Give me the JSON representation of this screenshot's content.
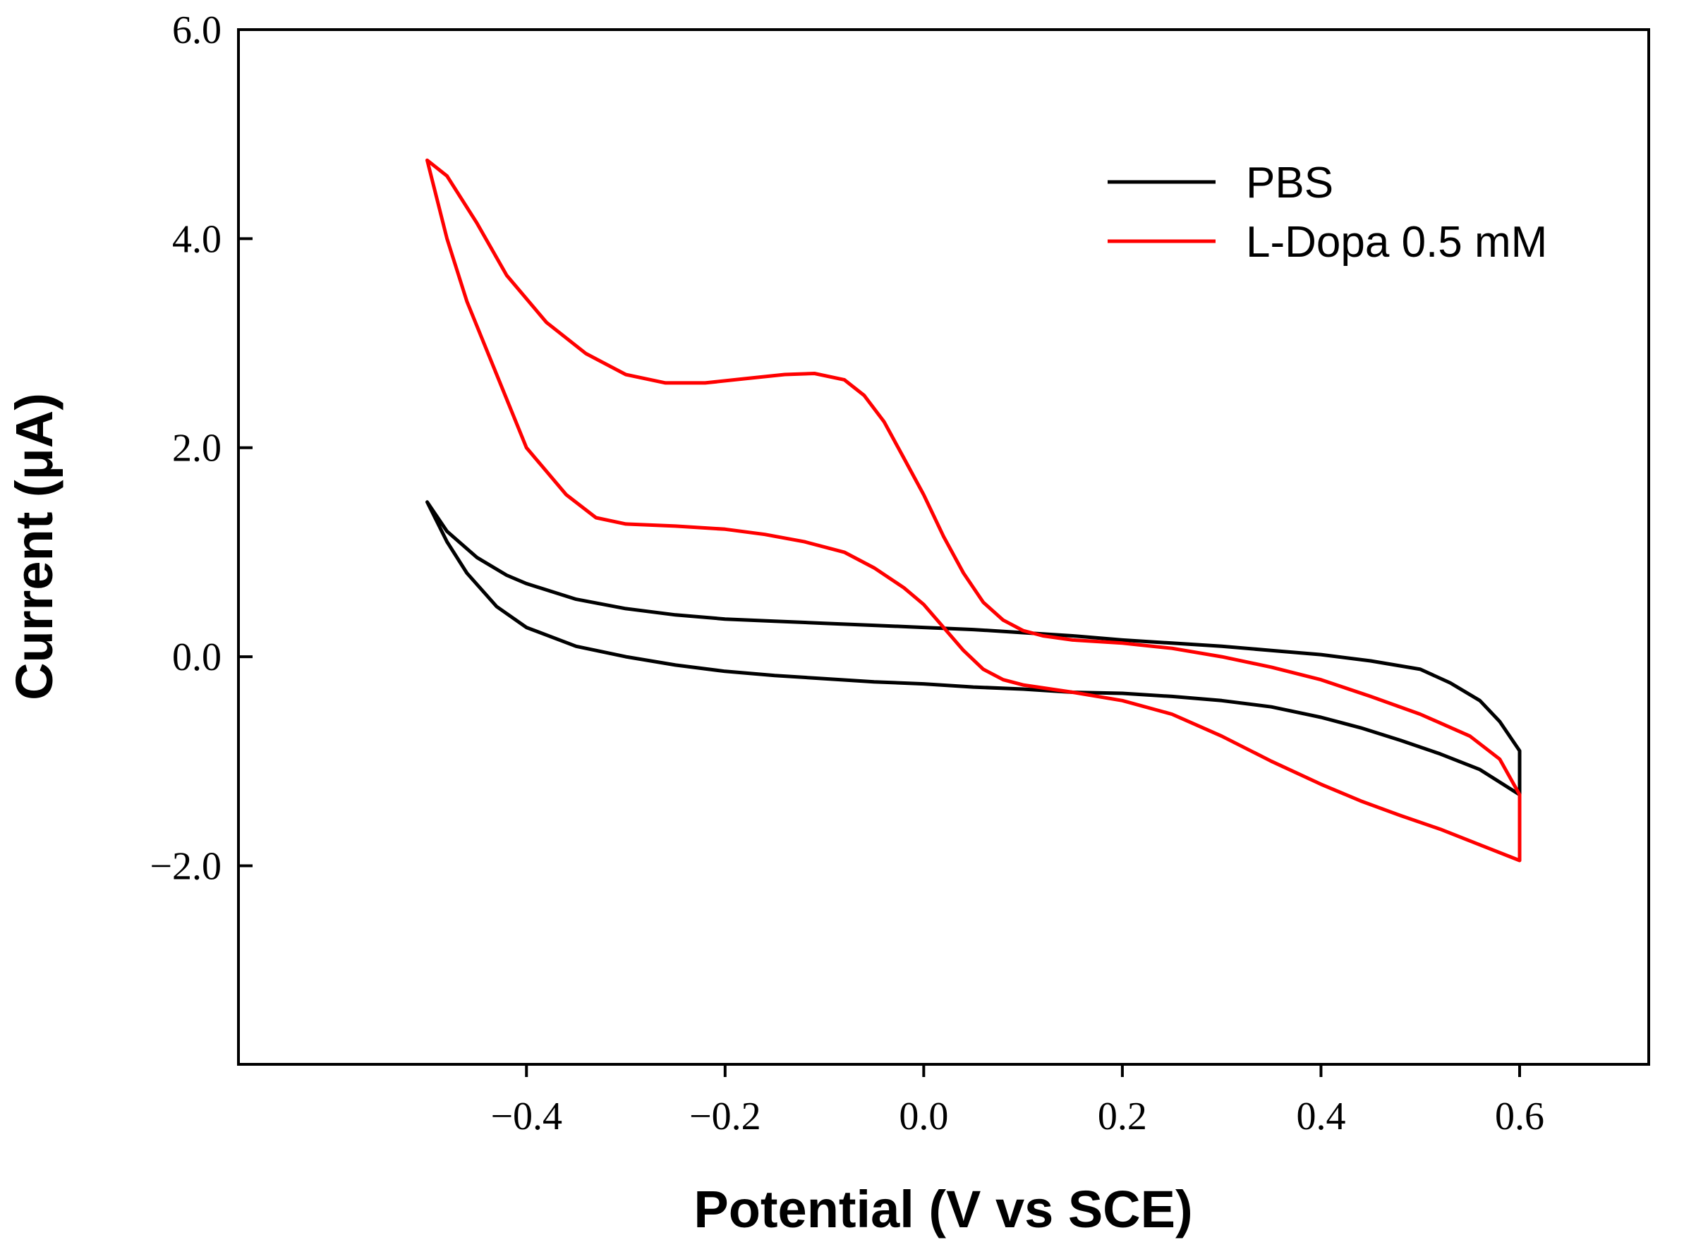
{
  "chart_data": {
    "type": "line",
    "title": "",
    "xlabel": "Potential (V vs SCE)",
    "ylabel": "Current (μA)",
    "xlim": [
      -0.69,
      0.73
    ],
    "ylim": [
      -3.9,
      6.0
    ],
    "xticks": [
      -0.4,
      -0.2,
      0.0,
      0.2,
      0.4,
      0.6
    ],
    "xtick_labels": [
      "−0.4",
      "−0.2",
      "0.0",
      "0.2",
      "0.4",
      "0.6"
    ],
    "yticks": [
      -2.0,
      0.0,
      2.0,
      4.0,
      6.0
    ],
    "ytick_labels": [
      "−2.0",
      "0.0",
      "2.0",
      "4.0",
      "6.0"
    ],
    "grid": false,
    "legend_position": "top-right",
    "series": [
      {
        "name": "PBS",
        "color": "#000000",
        "x": [
          -0.5,
          -0.48,
          -0.45,
          -0.42,
          -0.4,
          -0.35,
          -0.3,
          -0.25,
          -0.2,
          -0.15,
          -0.1,
          -0.05,
          0.0,
          0.05,
          0.1,
          0.15,
          0.2,
          0.25,
          0.3,
          0.35,
          0.4,
          0.45,
          0.5,
          0.53,
          0.56,
          0.58,
          0.6,
          0.6,
          0.56,
          0.52,
          0.48,
          0.44,
          0.4,
          0.35,
          0.3,
          0.25,
          0.2,
          0.15,
          0.1,
          0.05,
          0.0,
          -0.05,
          -0.1,
          -0.15,
          -0.2,
          -0.25,
          -0.3,
          -0.35,
          -0.4,
          -0.43,
          -0.46,
          -0.48,
          -0.5
        ],
        "y": [
          1.48,
          1.2,
          0.95,
          0.78,
          0.7,
          0.55,
          0.46,
          0.4,
          0.36,
          0.34,
          0.32,
          0.3,
          0.28,
          0.26,
          0.23,
          0.2,
          0.16,
          0.13,
          0.1,
          0.06,
          0.02,
          -0.04,
          -0.12,
          -0.25,
          -0.42,
          -0.62,
          -0.9,
          -1.32,
          -1.08,
          -0.93,
          -0.8,
          -0.68,
          -0.58,
          -0.48,
          -0.42,
          -0.38,
          -0.35,
          -0.34,
          -0.31,
          -0.29,
          -0.26,
          -0.24,
          -0.21,
          -0.18,
          -0.14,
          -0.08,
          0.0,
          0.1,
          0.28,
          0.48,
          0.8,
          1.1,
          1.48
        ]
      },
      {
        "name": "L-Dopa 0.5 mM",
        "color": "#ff0000",
        "x": [
          -0.5,
          -0.48,
          -0.45,
          -0.42,
          -0.38,
          -0.34,
          -0.3,
          -0.26,
          -0.22,
          -0.18,
          -0.14,
          -0.11,
          -0.08,
          -0.06,
          -0.04,
          -0.02,
          0.0,
          0.02,
          0.04,
          0.06,
          0.08,
          0.1,
          0.12,
          0.15,
          0.2,
          0.25,
          0.3,
          0.35,
          0.4,
          0.45,
          0.5,
          0.55,
          0.58,
          0.6,
          0.6,
          0.56,
          0.52,
          0.48,
          0.44,
          0.4,
          0.35,
          0.3,
          0.25,
          0.2,
          0.15,
          0.1,
          0.08,
          0.06,
          0.04,
          0.02,
          0.0,
          -0.02,
          -0.05,
          -0.08,
          -0.12,
          -0.16,
          -0.2,
          -0.25,
          -0.3,
          -0.33,
          -0.36,
          -0.4,
          -0.43,
          -0.46,
          -0.48,
          -0.5
        ],
        "y": [
          4.75,
          4.6,
          4.15,
          3.65,
          3.2,
          2.9,
          2.7,
          2.62,
          2.62,
          2.66,
          2.7,
          2.71,
          2.65,
          2.5,
          2.25,
          1.9,
          1.55,
          1.15,
          0.8,
          0.52,
          0.35,
          0.25,
          0.2,
          0.16,
          0.13,
          0.08,
          0.0,
          -0.1,
          -0.22,
          -0.38,
          -0.55,
          -0.76,
          -0.98,
          -1.32,
          -1.95,
          -1.8,
          -1.65,
          -1.52,
          -1.38,
          -1.22,
          -1.0,
          -0.76,
          -0.55,
          -0.42,
          -0.34,
          -0.27,
          -0.22,
          -0.12,
          0.06,
          0.28,
          0.5,
          0.66,
          0.85,
          1.0,
          1.1,
          1.17,
          1.22,
          1.25,
          1.27,
          1.33,
          1.55,
          2.0,
          2.7,
          3.4,
          4.0,
          4.75
        ]
      }
    ]
  }
}
